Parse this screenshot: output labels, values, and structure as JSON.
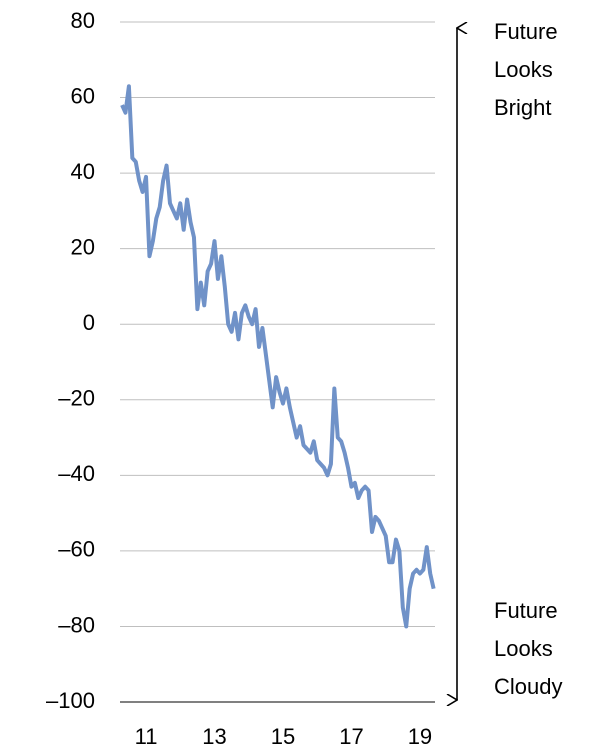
{
  "chart_data": {
    "type": "line",
    "x": [
      10.3,
      10.4,
      10.5,
      10.6,
      10.7,
      10.8,
      10.9,
      11.0,
      11.1,
      11.2,
      11.3,
      11.4,
      11.5,
      11.6,
      11.7,
      11.8,
      11.9,
      12.0,
      12.1,
      12.2,
      12.3,
      12.4,
      12.5,
      12.6,
      12.7,
      12.8,
      12.9,
      13.0,
      13.1,
      13.2,
      13.3,
      13.4,
      13.5,
      13.6,
      13.7,
      13.8,
      13.9,
      14.0,
      14.1,
      14.2,
      14.3,
      14.4,
      14.5,
      14.6,
      14.7,
      14.8,
      14.9,
      15.0,
      15.1,
      15.2,
      15.3,
      15.4,
      15.5,
      15.6,
      15.7,
      15.8,
      15.9,
      16.0,
      16.1,
      16.2,
      16.3,
      16.4,
      16.5,
      16.6,
      16.7,
      16.8,
      16.9,
      17.0,
      17.1,
      17.2,
      17.3,
      17.4,
      17.5,
      17.6,
      17.7,
      17.8,
      17.9,
      18.0,
      18.1,
      18.2,
      18.3,
      18.4,
      18.5,
      18.6,
      18.7,
      18.8,
      18.9,
      19.0,
      19.1,
      19.2,
      19.3,
      19.4
    ],
    "values": [
      58,
      56,
      63,
      44,
      43,
      38,
      35,
      39,
      18,
      22,
      28,
      31,
      38,
      42,
      32,
      30,
      28,
      32,
      25,
      33,
      27,
      23,
      4,
      11,
      5,
      14,
      16,
      22,
      12,
      18,
      10,
      0,
      -2,
      3,
      -4,
      3,
      5,
      2,
      0,
      4,
      -6,
      -1,
      -8,
      -15,
      -22,
      -14,
      -18,
      -21,
      -17,
      -22,
      -26,
      -30,
      -27,
      -32,
      -33,
      -34,
      -31,
      -36,
      -37,
      -38,
      -40,
      -37,
      -17,
      -30,
      -31,
      -34,
      -38,
      -43,
      -42,
      -46,
      -44,
      -43,
      -44,
      -55,
      -51,
      -52,
      -54,
      -56,
      -63,
      -63,
      -57,
      -60,
      -75,
      -80,
      -70,
      -66,
      -65,
      -66,
      -65,
      -59,
      -66,
      -70
    ],
    "color": "#7092c8",
    "xlim": [
      10.24,
      19.44
    ],
    "xticks": [
      11,
      13,
      15,
      17,
      19
    ],
    "ylim": [
      -100,
      80
    ],
    "yticks": [
      {
        "value": -100,
        "label": "–100"
      },
      {
        "value": -80,
        "label": "–80"
      },
      {
        "value": -60,
        "label": "–60"
      },
      {
        "value": -40,
        "label": "–40"
      },
      {
        "value": -20,
        "label": "–20"
      },
      0,
      20,
      40,
      60,
      80
    ],
    "grid": true,
    "annotations": [
      [
        "Future",
        "Looks",
        "Bright"
      ],
      [
        "Future",
        "Looks",
        "Cloudy"
      ]
    ]
  }
}
